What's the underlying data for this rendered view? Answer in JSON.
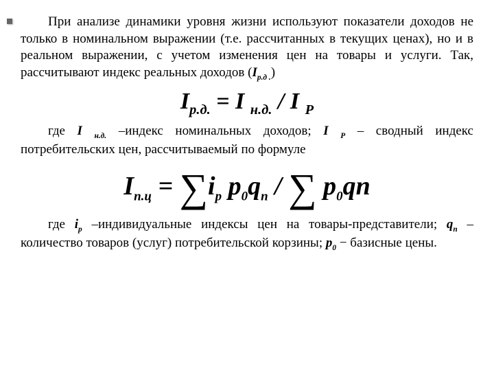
{
  "text": {
    "p1_part1": "При анализе динамики уровня жизни используют показатели доходов не только в номинальном выражении (т.е. рассчитанных в текущих ценах), но и в реальном выражении, с учетом изменения цен на товары и услуги. Так, рассчитывают индекс реальных доходов (",
    "p1_var": "I",
    "p1_sub": "р.д .",
    "p1_close": ")",
    "formula1_lhs": "I",
    "formula1_lhs_sub": "р.д.",
    "formula1_eq": " = ",
    "formula1_mid": "I ",
    "formula1_mid_sub": "н.д.",
    "formula1_div": " / ",
    "formula1_rhs": "I ",
    "formula1_rhs_sub": "P",
    "p2_part1": "где ",
    "p2_var1": "I ",
    "p2_sub1": "н.д.",
    "p2_part2": " –индекс номинальных доходов; ",
    "p2_var2": "I ",
    "p2_sub2": "P",
    "p2_part3": " – сводный индекс потребительских цен, рассчитываемый по формуле",
    "f2_I": "I",
    "f2_sub_left": "п.ц",
    "f2_eq": " = ",
    "f2_ip": "i",
    "f2_ip_sub": "p",
    "f2_p0": " p",
    "f2_p0_sub": "0",
    "f2_qn": "q",
    "f2_qn_sub": "n",
    "f2_div": " / ",
    "f2_p0b": "p",
    "f2_p0b_sub": "0",
    "f2_qnb": "qn",
    "p3_part1": "где ",
    "p3_var1": "i",
    "p3_sub1": "p",
    "p3_part2": " –индивидуальные индексы цен на товары-представители; ",
    "p3_var2": "q",
    "p3_sub2": "n",
    "p3_part3": " – количество товаров (услуг)  потребительской корзины; ",
    "p3_var3": "p",
    "p3_sub3": "0",
    "p3_part4": " − базисные цены."
  },
  "colors": {
    "background": "#ffffff",
    "text": "#000000"
  },
  "fonts": {
    "body_size": 19,
    "formula1_size": 34,
    "formula2_size": 38,
    "family": "Times New Roman"
  }
}
